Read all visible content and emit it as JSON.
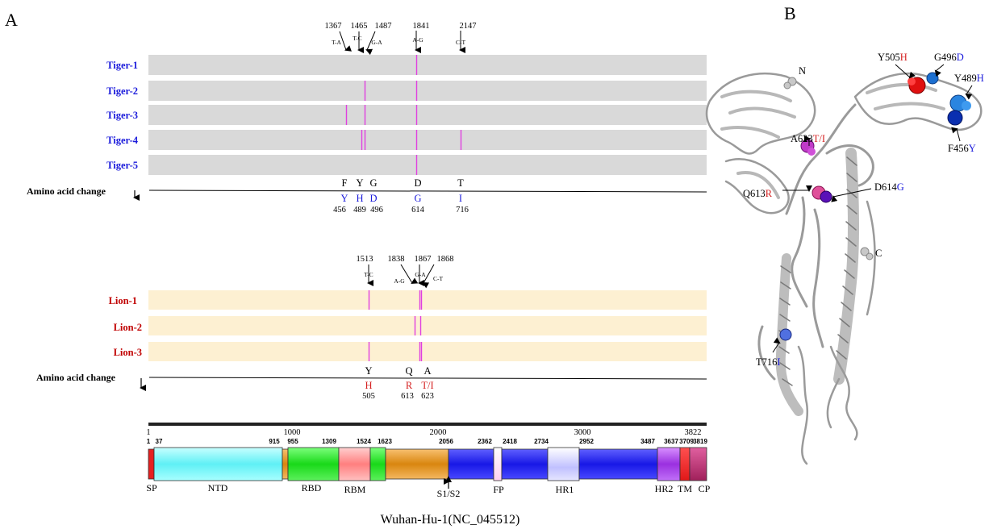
{
  "panel_a_label": "A",
  "panel_b_label": "B",
  "colors": {
    "tiger_label": "#1a1adb",
    "lion_label": "#c00000",
    "tiger_track": "#d9d9d9",
    "lion_track": "#fdf0d2",
    "mutation_line": "#e040e0",
    "blue_text": "#1a1adb",
    "red_text": "#d42020"
  },
  "amino_acid_change_label": "Amino acid change",
  "tigers": {
    "names": [
      "Tiger-1",
      "Tiger-2",
      "Tiger-3",
      "Tiger-4",
      "Tiger-5"
    ],
    "mutations": [
      {
        "pos": "1367",
        "change": "T-A"
      },
      {
        "pos": "1465",
        "change": "T-C"
      },
      {
        "pos": "1487",
        "change": "G-A"
      },
      {
        "pos": "1841",
        "change": "A-G"
      },
      {
        "pos": "2147",
        "change": "C-T"
      }
    ],
    "aa": [
      {
        "from": "F",
        "to": "Y",
        "num": "456"
      },
      {
        "from": "Y",
        "to": "H",
        "num": "489"
      },
      {
        "from": "G",
        "to": "D",
        "num": "496"
      },
      {
        "from": "D",
        "to": "G",
        "num": "614"
      },
      {
        "from": "T",
        "to": "I",
        "num": "716"
      }
    ]
  },
  "lions": {
    "names": [
      "Lion-1",
      "Lion-2",
      "Lion-3"
    ],
    "mutations": [
      {
        "pos": "1513",
        "change": "T-C"
      },
      {
        "pos": "1838",
        "change": "A-G"
      },
      {
        "pos": "1867",
        "change": "G-A"
      },
      {
        "pos": "1868",
        "change": "C-T"
      }
    ],
    "aa": [
      {
        "from": "Y",
        "to": "H",
        "num": "505"
      },
      {
        "from": "Q",
        "to": "R",
        "num": "613"
      },
      {
        "from": "A",
        "to": "T/I",
        "num": "623"
      }
    ]
  },
  "scale": {
    "start": "1",
    "ticks": [
      "1000",
      "2000",
      "3000"
    ],
    "end": "3822"
  },
  "domains": {
    "boundaries": [
      "1",
      "37",
      "915",
      "955",
      "1309",
      "1524",
      "1623",
      "2056",
      "2362",
      "2418",
      "2734",
      "2952",
      "3487",
      "3637",
      "3709",
      "3819"
    ],
    "names": [
      "SP",
      "NTD",
      "RBD",
      "RBM",
      "S1/S2",
      "FP",
      "HR1",
      "HR2",
      "TM",
      "CP"
    ]
  },
  "genome_label": "Wuhan-Hu-1(NC_045512)",
  "structure": {
    "terminus_n": "N",
    "terminus_c": "C",
    "sites": [
      {
        "prefix": "Y505",
        "suffix": "H"
      },
      {
        "prefix": "G496",
        "suffix": "D"
      },
      {
        "prefix": "Y489",
        "suffix": "H"
      },
      {
        "prefix": "F456",
        "suffix": "Y"
      },
      {
        "prefix": "A623",
        "suffix": "T/I"
      },
      {
        "prefix": "Q613",
        "suffix": "R"
      },
      {
        "prefix": "D614",
        "suffix": "G"
      },
      {
        "prefix": "T716",
        "suffix": "I"
      }
    ]
  }
}
